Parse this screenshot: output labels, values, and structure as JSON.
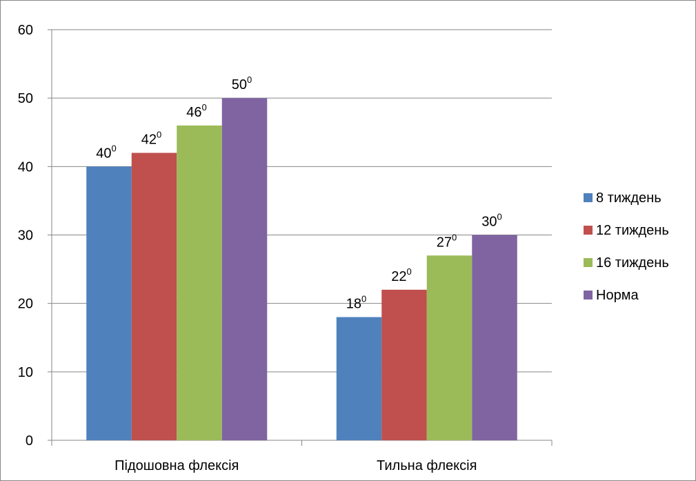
{
  "chart_data": {
    "type": "bar",
    "categories": [
      "Підошовна флексія",
      "Тильна флексія"
    ],
    "series": [
      {
        "name": "8 тиждень",
        "values": [
          40,
          18
        ],
        "labels": [
          "40",
          "18"
        ],
        "color": "#4F81BD"
      },
      {
        "name": "12 тиждень",
        "values": [
          42,
          22
        ],
        "labels": [
          "42",
          "22"
        ],
        "color": "#C0504D"
      },
      {
        "name": "16 тиждень",
        "values": [
          46,
          27
        ],
        "labels": [
          "46",
          "27"
        ],
        "color": "#9BBB59"
      },
      {
        "name": "Норма",
        "values": [
          50,
          30
        ],
        "labels": [
          "50",
          "30"
        ],
        "color": "#8064A2"
      }
    ],
    "label_superscript": "0",
    "ylim": [
      0,
      60
    ],
    "yticks": [
      "0",
      "10",
      "20",
      "30",
      "40",
      "50",
      "60"
    ],
    "grid": true,
    "legend_position": "right"
  }
}
